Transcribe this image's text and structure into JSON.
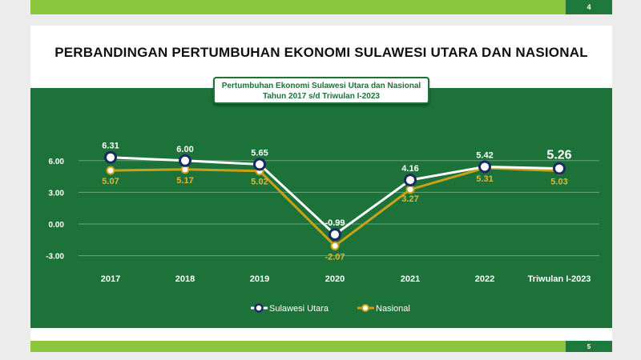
{
  "prev_slide": {
    "page_number": "4"
  },
  "slide": {
    "title": "PERBANDINGAN PERTUMBUHAN EKONOMI SULAWESI UTARA DAN NASIONAL",
    "page_number": "5"
  },
  "colors": {
    "panel": "#1c7238",
    "sulut_line": "#ffffff",
    "sulut_marker_border": "#1a2a66",
    "nasional_line": "#c9a21a",
    "nasional_label": "#e0b838",
    "accent_bar": "#8cc63f"
  },
  "chart_data": {
    "type": "line",
    "title": "Pertumbuhan Ekonomi Sulawesi Utara dan Nasional",
    "subtitle": "Tahun 2017 s/d Triwulan I-2023",
    "categories": [
      "2017",
      "2018",
      "2019",
      "2020",
      "2021",
      "2022",
      "Triwulan I-2023"
    ],
    "series": [
      {
        "name": "Sulawesi Utara",
        "values": [
          6.31,
          6.0,
          5.65,
          -0.99,
          4.16,
          5.42,
          5.26
        ],
        "labels": [
          "6.31",
          "6.00",
          "5.65",
          "-0.99",
          "4.16",
          "5.42",
          "5.26"
        ]
      },
      {
        "name": "Nasional",
        "values": [
          5.07,
          5.17,
          5.02,
          -2.07,
          3.27,
          5.31,
          5.03
        ],
        "labels": [
          "5.07",
          "5.17",
          "5.02",
          "-2.07",
          "3.27",
          "5.31",
          "5.03"
        ]
      }
    ],
    "yticks": [
      "6.00",
      "3.00",
      "0.00",
      "-3.00"
    ],
    "ytick_values": [
      6,
      3,
      0,
      -3
    ],
    "ylim": [
      -3,
      8
    ],
    "grid": true,
    "legend_position": "bottom"
  }
}
